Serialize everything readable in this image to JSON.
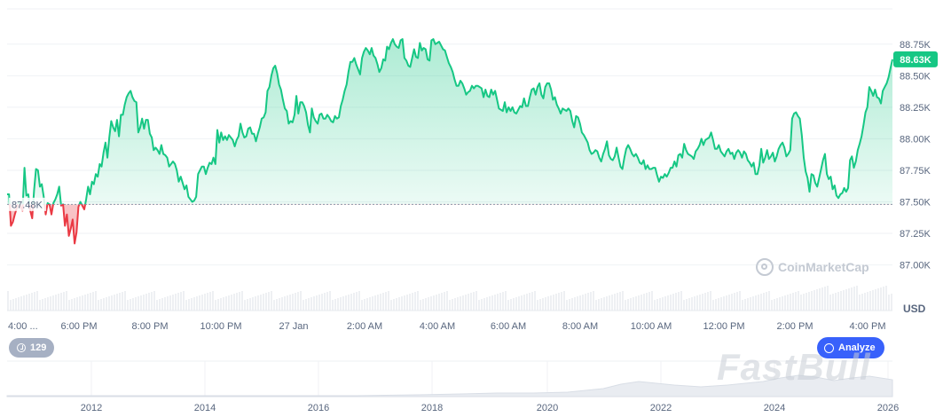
{
  "chart_data": {
    "type": "area",
    "currency": "USD",
    "y_ticks": [
      "88.75K",
      "88.50K",
      "88.25K",
      "88.00K",
      "87.75K",
      "87.50K",
      "87.25K",
      "87.00K"
    ],
    "y_tick_values": [
      88750,
      88500,
      88250,
      88000,
      87750,
      87500,
      87250,
      87000
    ],
    "ylim": [
      86990,
      89030
    ],
    "x_ticks": [
      "4:00 ...",
      "6:00 PM",
      "8:00 PM",
      "10:00 PM",
      "27 Jan",
      "2:00 AM",
      "4:00 AM",
      "6:00 AM",
      "8:00 AM",
      "10:00 AM",
      "12:00 PM",
      "2:00 PM",
      "4:00 PM"
    ],
    "reference_price": 87480,
    "reference_label": "87.48K",
    "current_price": 88630,
    "current_label": "88.63K",
    "series": [
      {
        "values": [
          87560,
          87560,
          87310,
          87340,
          87400,
          87450,
          87500,
          87460,
          87430,
          87770,
          87550,
          87560,
          87430,
          87370,
          87590,
          87760,
          87750,
          87620,
          87640,
          87540,
          87400,
          87490,
          87480,
          87400,
          87490,
          87520,
          87560,
          87620,
          87470,
          87480,
          87310,
          87400,
          87230,
          87290,
          87360,
          87170,
          87260,
          87460,
          87500,
          87470,
          87440,
          87520,
          87620,
          87560,
          87660,
          87640,
          87720,
          87700,
          87800,
          87780,
          87890,
          87970,
          87850,
          88010,
          88140,
          88090,
          88060,
          88150,
          88020,
          88190,
          88190,
          88270,
          88330,
          88360,
          88380,
          88330,
          88300,
          88290,
          88050,
          88090,
          88160,
          88080,
          88150,
          88150,
          88040,
          88010,
          87910,
          87930,
          87910,
          87880,
          87950,
          87880,
          87870,
          87850,
          87780,
          87800,
          87820,
          87800,
          87750,
          87660,
          87700,
          87650,
          87600,
          87630,
          87540,
          87520,
          87500,
          87510,
          87540,
          87720,
          87750,
          87780,
          87780,
          87720,
          87770,
          87810,
          87800,
          87850,
          87800,
          88070,
          87970,
          88050,
          87990,
          88020,
          87990,
          88030,
          88010,
          87990,
          87940,
          87990,
          88020,
          88120,
          88050,
          88010,
          88020,
          88080,
          88090,
          88040,
          88040,
          87980,
          88040,
          88090,
          88160,
          88170,
          88210,
          88380,
          88410,
          88500,
          88560,
          88580,
          88520,
          88430,
          88390,
          88310,
          88240,
          88220,
          88120,
          88140,
          88130,
          88190,
          88340,
          88200,
          88290,
          88290,
          88260,
          88210,
          88110,
          88050,
          88240,
          88170,
          88140,
          88120,
          88190,
          88200,
          88160,
          88160,
          88190,
          88170,
          88140,
          88130,
          88180,
          88160,
          88170,
          88260,
          88310,
          88380,
          88430,
          88530,
          88610,
          88610,
          88640,
          88590,
          88550,
          88510,
          88640,
          88690,
          88720,
          88700,
          88670,
          88720,
          88660,
          88640,
          88590,
          88530,
          88560,
          88630,
          88620,
          88730,
          88710,
          88760,
          88790,
          88750,
          88730,
          88720,
          88780,
          88790,
          88640,
          88620,
          88580,
          88570,
          88640,
          88710,
          88650,
          88640,
          88760,
          88700,
          88720,
          88710,
          88630,
          88620,
          88780,
          88790,
          88750,
          88760,
          88770,
          88740,
          88710,
          88700,
          88650,
          88600,
          88570,
          88530,
          88470,
          88420,
          88420,
          88460,
          88440,
          88400,
          88350,
          88370,
          88380,
          88420,
          88400,
          88420,
          88420,
          88410,
          88400,
          88330,
          88390,
          88340,
          88330,
          88390,
          88350,
          88380,
          88310,
          88240,
          88230,
          88220,
          88290,
          88210,
          88250,
          88220,
          88250,
          88210,
          88200,
          88230,
          88260,
          88250,
          88320,
          88260,
          88260,
          88330,
          88390,
          88400,
          88350,
          88410,
          88440,
          88350,
          88320,
          88410,
          88440,
          88440,
          88390,
          88310,
          88330,
          88270,
          88240,
          88200,
          88240,
          88230,
          88220,
          88240,
          88220,
          88140,
          88090,
          88180,
          88170,
          88120,
          88050,
          88030,
          88000,
          87970,
          87910,
          87880,
          87890,
          87910,
          87900,
          87850,
          87820,
          87880,
          87920,
          87980,
          87870,
          87840,
          87830,
          87860,
          87930,
          87850,
          87780,
          87760,
          87850,
          87920,
          87950,
          87920,
          87880,
          87860,
          87880,
          87850,
          87810,
          87800,
          87830,
          87760,
          87790,
          87760,
          87760,
          87770,
          87770,
          87710,
          87660,
          87700,
          87690,
          87720,
          87700,
          87730,
          87770,
          87770,
          87820,
          87780,
          87870,
          87880,
          87850,
          87960,
          87910,
          87880,
          87870,
          87860,
          87840,
          87900,
          87920,
          87950,
          88000,
          87950,
          87990,
          88000,
          88010,
          88050,
          87990,
          87920,
          87920,
          87950,
          87900,
          87880,
          87860,
          87900,
          87920,
          87880,
          87890,
          87840,
          87890,
          87910,
          87890,
          87850,
          87900,
          87880,
          87830,
          87810,
          87780,
          87810,
          87720,
          87720,
          87790,
          87920,
          87810,
          87850,
          87910,
          87840,
          87860,
          87890,
          87820,
          87860,
          87920,
          87950,
          87970,
          87930,
          87860,
          87880,
          87910,
          88160,
          88200,
          88210,
          88180,
          88160,
          88030,
          87850,
          87740,
          87690,
          87580,
          87720,
          87710,
          87650,
          87620,
          87690,
          87760,
          87830,
          87880,
          87720,
          87680,
          87700,
          87600,
          87630,
          87550,
          87530,
          87560,
          87570,
          87610,
          87580,
          87610,
          87830,
          87860,
          87770,
          87820,
          87910,
          87960,
          88020,
          88110,
          88210,
          88250,
          88410,
          88380,
          88340,
          88390,
          88330,
          88320,
          88280,
          88380,
          88410,
          88440,
          88490,
          88560,
          88630
        ]
      }
    ],
    "volume": {
      "note": "light grey volume bars along bottom of main panel"
    },
    "mini_x_ticks": [
      "2012",
      "2014",
      "2016",
      "2018",
      "2020",
      "2022",
      "2024",
      "2026"
    ],
    "grid": true,
    "legend": "none"
  },
  "ui": {
    "unit_label": "USD",
    "brand_name": "CoinMarketCap",
    "history_count": "129",
    "analyze_label": "Analyze",
    "watermark": "FastBull",
    "colors": {
      "up": "#16c784",
      "down": "#ea3943",
      "badge": "#16c784",
      "accent": "#3861fb",
      "grid": "#eff2f5",
      "text": "#58667e"
    }
  }
}
